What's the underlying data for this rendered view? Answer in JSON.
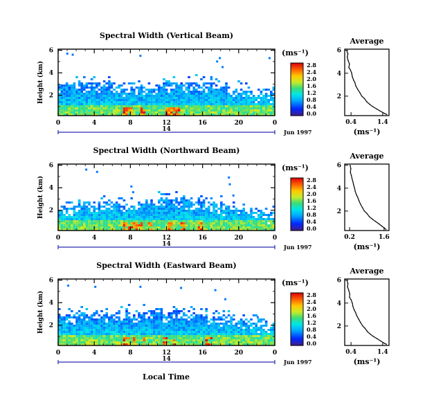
{
  "figure": {
    "bottom_xlabel": "Local Time",
    "colorbar_unit": "(ms⁻¹)",
    "profile_xlabel": "(ms⁻¹)"
  },
  "chart_data": [
    {
      "type": "heatmap",
      "title": "Spectral Width (Vertical Beam)",
      "ylabel": "Height (km)",
      "xlabel": "",
      "x_ticks": [
        "0",
        "4",
        "8",
        "12",
        "16",
        "20",
        "0"
      ],
      "y_ticks": [
        "6",
        "4",
        "2"
      ],
      "xlim": [
        0,
        24
      ],
      "ylim": [
        0.2,
        6.1
      ],
      "date_axis": {
        "label": "14",
        "month_label": "Jun 1997"
      },
      "colorbar": {
        "unit": "(ms⁻¹)",
        "range": [
          0,
          2.8
        ],
        "ticks": [
          "2.8",
          "2.4",
          "2.0",
          "1.6",
          "1.2",
          "0.8",
          "0.4",
          "0.0"
        ]
      },
      "echo_top_km": [
        3.0,
        3.1,
        3.3,
        3.3,
        3.1,
        3.2,
        3.0,
        2.9,
        2.8,
        2.9,
        3.0,
        3.1,
        3.3,
        3.3,
        3.2,
        3.1,
        3.1,
        3.0,
        2.9,
        2.7,
        2.6,
        2.4,
        2.3,
        2.2,
        2.1
      ],
      "high_width_times_h": [
        7.3,
        7.6,
        8.0,
        9.2,
        11.9,
        12.2,
        12.9,
        13.1
      ],
      "scattered_echoes": [
        [
          0.9,
          5.8
        ],
        [
          1.5,
          5.7
        ],
        [
          9.0,
          5.6
        ],
        [
          17.5,
          5.1
        ],
        [
          17.8,
          5.4
        ],
        [
          18.1,
          4.6
        ],
        [
          23.3,
          5.4
        ]
      ]
    },
    {
      "type": "line",
      "title": "Average",
      "xlabel": "(ms⁻¹)",
      "x_ticks": [
        "0.4",
        "1.4"
      ],
      "y_ticks": [
        "6",
        "4",
        "2"
      ],
      "xlim": [
        0.2,
        1.6
      ],
      "ylim": [
        0.3,
        6.1
      ],
      "x": [
        0.26,
        0.3,
        0.28,
        0.31,
        0.35,
        0.33,
        0.38,
        0.42,
        0.44,
        0.48,
        0.52,
        0.55,
        0.61,
        0.68,
        0.74,
        0.82,
        0.9,
        0.98,
        1.08,
        1.2,
        1.32,
        1.45,
        1.53
      ],
      "y": [
        6.0,
        5.7,
        5.4,
        5.1,
        4.8,
        4.5,
        4.3,
        4.0,
        3.7,
        3.4,
        3.2,
        2.9,
        2.6,
        2.3,
        2.0,
        1.8,
        1.5,
        1.3,
        1.1,
        0.9,
        0.7,
        0.5,
        0.4
      ]
    },
    {
      "type": "heatmap",
      "title": "Spectral Width (Northward Beam)",
      "ylabel": "Height (km)",
      "xlabel": "",
      "x_ticks": [
        "0",
        "4",
        "8",
        "12",
        "16",
        "20",
        "0"
      ],
      "y_ticks": [
        "6",
        "4",
        "2"
      ],
      "xlim": [
        0,
        24
      ],
      "ylim": [
        0.2,
        6.1
      ],
      "date_axis": {
        "label": "14",
        "month_label": "Jun 1997"
      },
      "colorbar": {
        "unit": "(ms⁻¹)",
        "range": [
          0,
          2.8
        ],
        "ticks": [
          "2.8",
          "2.4",
          "2.0",
          "1.6",
          "1.2",
          "0.8",
          "0.4",
          "0.0"
        ]
      },
      "echo_top_km": [
        2.3,
        2.4,
        2.6,
        2.7,
        2.8,
        2.6,
        2.5,
        2.4,
        2.6,
        2.8,
        2.9,
        3.0,
        3.1,
        3.0,
        2.9,
        2.9,
        2.7,
        2.6,
        2.5,
        2.3,
        2.2,
        2.0,
        1.9,
        1.8,
        1.7
      ],
      "high_width_times_h": [
        7.4,
        7.8,
        8.4,
        9.0,
        10.0,
        12.2,
        13.6,
        15.7
      ],
      "scattered_echoes": [
        [
          3.0,
          5.7
        ],
        [
          4.2,
          5.5
        ],
        [
          8.0,
          4.2
        ],
        [
          8.2,
          3.7
        ],
        [
          18.8,
          5.0
        ],
        [
          18.9,
          4.4
        ],
        [
          19.3,
          3.4
        ]
      ]
    },
    {
      "type": "line",
      "title": "Average",
      "xlabel": "(ms⁻¹)",
      "x_ticks": [
        "0.2",
        "1.6"
      ],
      "y_ticks": [
        "6",
        "4",
        "2"
      ],
      "xlim": [
        0.0,
        1.8
      ],
      "ylim": [
        0.3,
        6.1
      ],
      "x": [
        0.22,
        0.25,
        0.23,
        0.27,
        0.3,
        0.34,
        0.36,
        0.4,
        0.43,
        0.48,
        0.53,
        0.58,
        0.64,
        0.72,
        0.8,
        0.9,
        1.0,
        1.12,
        1.25,
        1.38,
        1.5,
        1.62,
        1.68
      ],
      "y": [
        6.0,
        5.7,
        5.4,
        5.1,
        4.8,
        4.5,
        4.3,
        4.0,
        3.7,
        3.4,
        3.2,
        2.9,
        2.6,
        2.3,
        2.0,
        1.8,
        1.5,
        1.3,
        1.1,
        0.9,
        0.7,
        0.5,
        0.4
      ]
    },
    {
      "type": "heatmap",
      "title": "Spectral Width (Eastward Beam)",
      "ylabel": "Height (km)",
      "xlabel": "Local Time",
      "x_ticks": [
        "0",
        "4",
        "8",
        "12",
        "16",
        "20",
        "0"
      ],
      "y_ticks": [
        "6",
        "4",
        "2"
      ],
      "xlim": [
        0,
        24
      ],
      "ylim": [
        0.2,
        6.1
      ],
      "date_axis": {
        "label": "14",
        "month_label": "Jun 1997"
      },
      "colorbar": {
        "unit": "(ms⁻¹)",
        "range": [
          0,
          2.8
        ],
        "ticks": [
          "2.8",
          "2.4",
          "2.0",
          "1.6",
          "1.2",
          "0.8",
          "0.4",
          "0.0"
        ]
      },
      "echo_top_km": [
        3.0,
        3.0,
        3.1,
        3.0,
        2.9,
        3.0,
        3.1,
        3.2,
        3.1,
        3.2,
        3.3,
        3.2,
        3.3,
        3.2,
        3.1,
        3.0,
        3.0,
        2.8,
        2.7,
        2.6,
        2.4,
        2.3,
        2.2,
        2.0,
        1.8
      ],
      "high_width_times_h": [
        7.2,
        7.6,
        8.3,
        9.4,
        11.8,
        12.7,
        16.3,
        16.8
      ],
      "scattered_echoes": [
        [
          1.0,
          5.6
        ],
        [
          4.0,
          5.5
        ],
        [
          9.0,
          5.5
        ],
        [
          13.5,
          5.4
        ],
        [
          17.3,
          5.2
        ],
        [
          18.4,
          4.4
        ],
        [
          22.0,
          2.8
        ]
      ]
    },
    {
      "type": "line",
      "title": "Average",
      "xlabel": "(ms⁻¹)",
      "x_ticks": [
        "0.4",
        "1.4"
      ],
      "y_ticks": [
        "6",
        "4",
        "2"
      ],
      "xlim": [
        0.2,
        1.6
      ],
      "ylim": [
        0.3,
        6.1
      ],
      "x": [
        0.27,
        0.3,
        0.29,
        0.33,
        0.36,
        0.35,
        0.4,
        0.44,
        0.46,
        0.5,
        0.54,
        0.58,
        0.64,
        0.7,
        0.77,
        0.84,
        0.92,
        1.0,
        1.1,
        1.22,
        1.33,
        1.45,
        1.52
      ],
      "y": [
        6.0,
        5.7,
        5.4,
        5.1,
        4.8,
        4.5,
        4.3,
        4.0,
        3.7,
        3.4,
        3.2,
        2.9,
        2.6,
        2.3,
        2.0,
        1.8,
        1.5,
        1.3,
        1.1,
        0.9,
        0.7,
        0.5,
        0.4
      ]
    }
  ]
}
